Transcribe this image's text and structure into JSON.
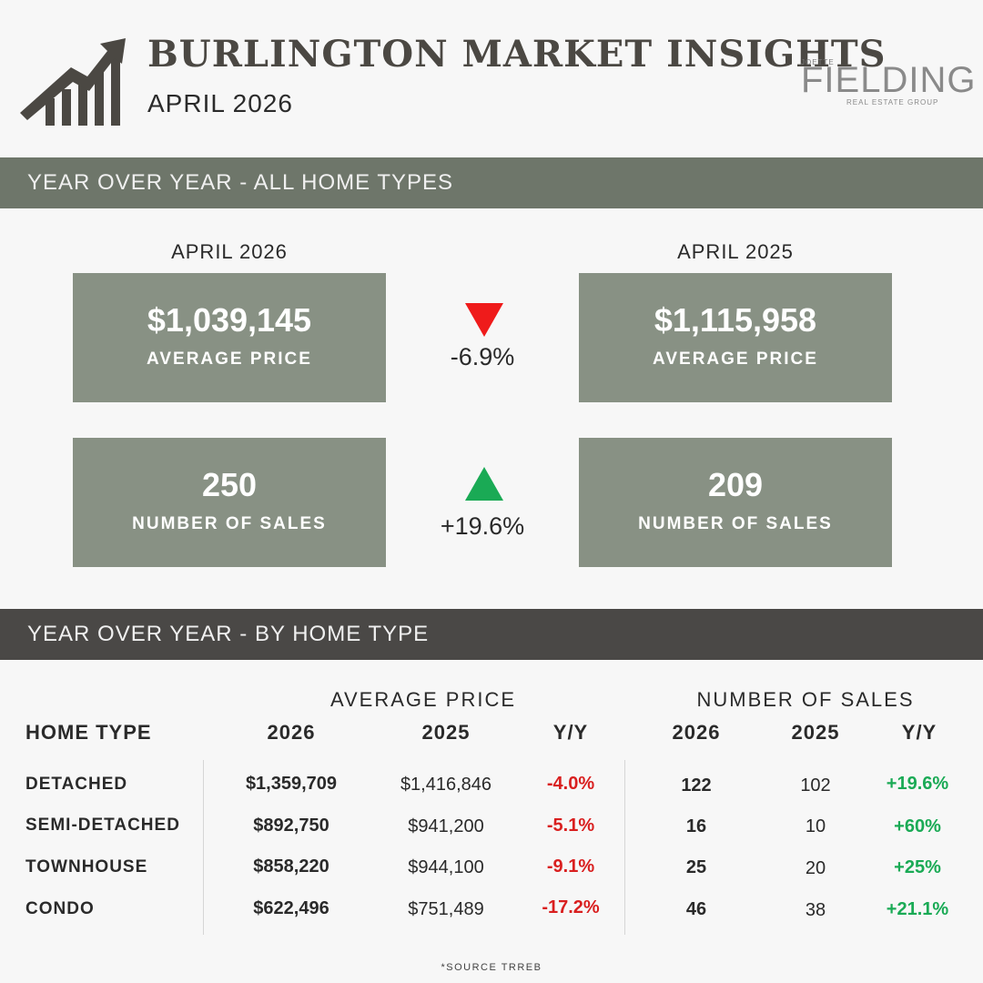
{
  "header": {
    "title": "BURLINGTON MARKET INSIGHTS",
    "subtitle": "APRIL 2026",
    "logo": {
      "top": "JOETTE",
      "main": "FIELDING",
      "sub": "REAL ESTATE GROUP"
    }
  },
  "section1": {
    "heading": "YEAR OVER YEAR - ALL HOME TYPES",
    "current_period": "APRIL 2026",
    "previous_period": "APRIL 2025",
    "avg_price": {
      "current": "$1,039,145",
      "previous": "$1,115,958",
      "label": "AVERAGE PRICE",
      "change": "-6.9%",
      "direction": "down"
    },
    "sales": {
      "current": "250",
      "previous": "209",
      "label": "NUMBER OF SALES",
      "change": "+19.6%",
      "direction": "up"
    }
  },
  "section2": {
    "heading": "YEAR OVER YEAR - BY HOME TYPE",
    "group_avg_price": "AVERAGE PRICE",
    "group_sales": "NUMBER OF SALES",
    "columns": [
      "HOME TYPE",
      "2026",
      "2025",
      "Y/Y",
      "2026",
      "2025",
      "Y/Y"
    ],
    "rows": [
      {
        "type": "DETACHED",
        "price_2026": "$1,359,709",
        "price_2025": "$1,416,846",
        "price_yy": "-4.0%",
        "sales_2026": "122",
        "sales_2025": "102",
        "sales_yy": "+19.6%"
      },
      {
        "type": "SEMI-DETACHED",
        "price_2026": "$892,750",
        "price_2025": "$941,200",
        "price_yy": "-5.1%",
        "sales_2026": "16",
        "sales_2025": "10",
        "sales_yy": "+60%"
      },
      {
        "type": "TOWNHOUSE",
        "price_2026": "$858,220",
        "price_2025": "$944,100",
        "price_yy": "-9.1%",
        "sales_2026": "25",
        "sales_2025": "20",
        "sales_yy": "+25%"
      },
      {
        "type": "CONDO",
        "price_2026": "$622,496",
        "price_2025": "$751,489",
        "price_yy": "-17.2%",
        "sales_2026": "46",
        "sales_2025": "38",
        "sales_yy": "+21.1%"
      }
    ]
  },
  "footer": {
    "source": "*SOURCE TRREB"
  },
  "colors": {
    "negative": "#d91f1f",
    "positive": "#1aaa55",
    "card": "#889184",
    "bar1": "#6e766a",
    "bar2": "#4a4846"
  },
  "icons": {
    "header_icon": "rising-bar-chart-icon",
    "down": "triangle-down-icon",
    "up": "triangle-up-icon"
  }
}
